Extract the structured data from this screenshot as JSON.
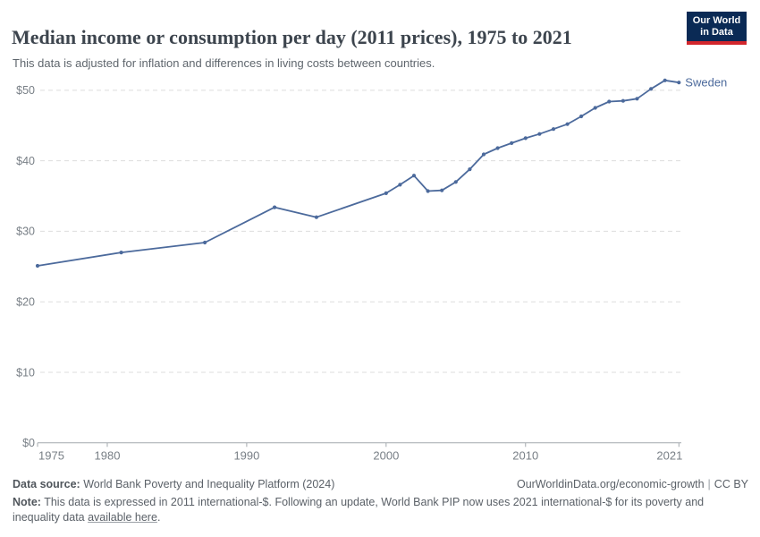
{
  "chart_data": {
    "type": "line",
    "title": "Median income or consumption per day (2011 prices), 1975 to 2021",
    "subtitle": "This data is adjusted for inflation and differences in living costs between countries.",
    "series": [
      {
        "name": "Sweden",
        "color": "#4c6a9c",
        "points": [
          [
            1975,
            25.1
          ],
          [
            1981,
            27.0
          ],
          [
            1987,
            28.4
          ],
          [
            1992,
            33.4
          ],
          [
            1995,
            32.0
          ],
          [
            2000,
            35.4
          ],
          [
            2001,
            36.6
          ],
          [
            2002,
            37.9
          ],
          [
            2003,
            35.7
          ],
          [
            2004,
            35.8
          ],
          [
            2005,
            37.0
          ],
          [
            2006,
            38.8
          ],
          [
            2007,
            40.9
          ],
          [
            2008,
            41.8
          ],
          [
            2009,
            42.5
          ],
          [
            2010,
            43.2
          ],
          [
            2011,
            43.8
          ],
          [
            2012,
            44.5
          ],
          [
            2013,
            45.2
          ],
          [
            2014,
            46.3
          ],
          [
            2015,
            47.5
          ],
          [
            2016,
            48.4
          ],
          [
            2017,
            48.5
          ],
          [
            2018,
            48.8
          ],
          [
            2019,
            50.2
          ],
          [
            2020,
            51.4
          ],
          [
            2021,
            51.1
          ]
        ]
      }
    ],
    "xlabel": "",
    "ylabel": "",
    "xlim": [
      1975,
      2021
    ],
    "ylim": [
      0,
      52
    ],
    "x_ticks": [
      1975,
      1980,
      1990,
      2000,
      2010,
      2021
    ],
    "y_ticks": [
      0,
      10,
      20,
      30,
      40,
      50
    ],
    "y_tick_prefix": "$",
    "grid": "horizontal-dashed",
    "legend_position": "end-of-line-label",
    "colors": {
      "grid": "#dddddd",
      "axis": "#a3a9ae",
      "tick_label": "#787f86"
    }
  },
  "header": {
    "logo_line1": "Our World",
    "logo_line2": "in Data"
  },
  "footer": {
    "datasource_label": "Data source:",
    "datasource_text": " World Bank Poverty and Inequality Platform (2024)",
    "url": "OurWorldinData.org/economic-growth",
    "separator": "|",
    "license": "CC BY",
    "note_label": "Note:",
    "note_text": " This data is expressed in 2011 international-$. Following an update, World Bank PIP now uses 2021 international-$ for its poverty and inequality data ",
    "note_link": "available here",
    "note_suffix": "."
  }
}
